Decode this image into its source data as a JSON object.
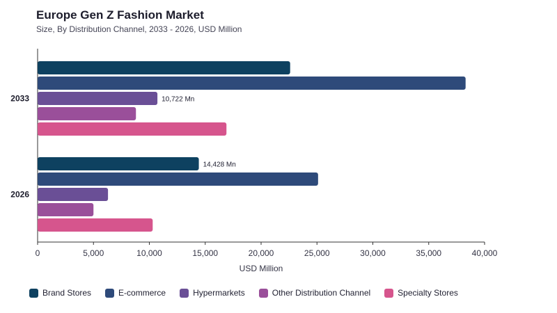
{
  "title": "Europe Gen Z Fashion Market",
  "subtitle": "Size, By Distribution Channel, 2033 - 2026, USD Million",
  "chart_data": {
    "type": "bar",
    "orientation": "horizontal",
    "title": "Europe Gen Z Fashion Market",
    "subtitle": "Size, By Distribution Channel, 2033 - 2026, USD Million",
    "xlabel": "USD Million",
    "ylabel": "",
    "xlim": [
      0,
      40000
    ],
    "xticks": [
      0,
      5000,
      10000,
      15000,
      20000,
      25000,
      30000,
      35000,
      40000
    ],
    "xtick_labels": [
      "0",
      "5,000",
      "10,000",
      "15,000",
      "20,000",
      "25,000",
      "30,000",
      "35,000",
      "40,000"
    ],
    "categories": [
      "2033",
      "2026"
    ],
    "legend_position": "bottom",
    "grid": false,
    "series": [
      {
        "name": "Brand Stores",
        "color": "#0e4160",
        "values": [
          22600,
          14428
        ]
      },
      {
        "name": "E-commerce",
        "color": "#2e4a7a",
        "values": [
          38300,
          25100
        ]
      },
      {
        "name": "Hypermarkets",
        "color": "#6a4f96",
        "values": [
          10722,
          6300
        ]
      },
      {
        "name": "Other Distribution Channel",
        "color": "#9a4f9a",
        "values": [
          8800,
          5000
        ]
      },
      {
        "name": "Specialty Stores",
        "color": "#d6558d",
        "values": [
          16900,
          10300
        ]
      }
    ],
    "data_labels": [
      {
        "category": "2033",
        "series": "Hypermarkets",
        "text": "10,722 Mn"
      },
      {
        "category": "2026",
        "series": "Brand Stores",
        "text": "14,428 Mn"
      }
    ]
  }
}
